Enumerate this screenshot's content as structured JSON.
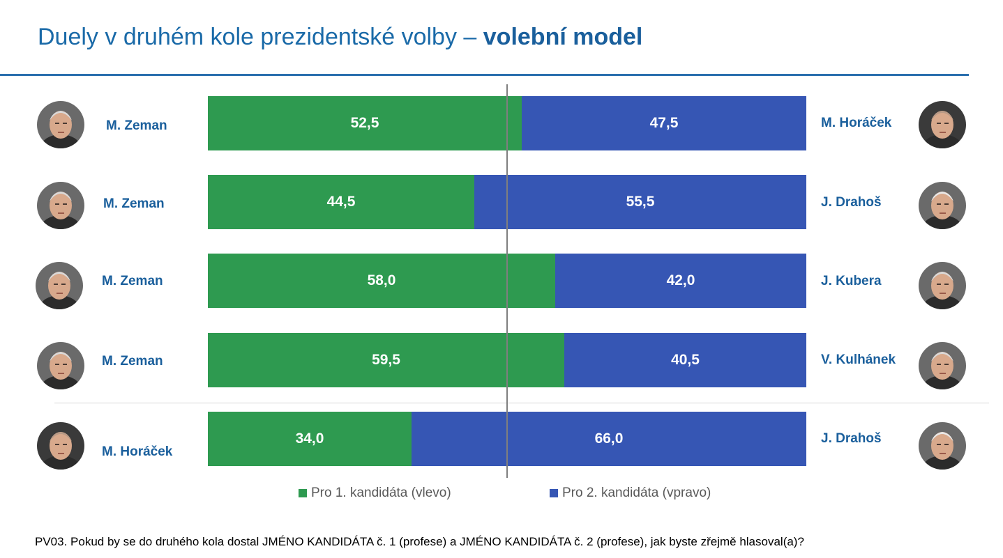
{
  "title": {
    "regular": "Duely v druhém kole prezidentské volby – ",
    "bold": "volební model"
  },
  "colors": {
    "left_series": "#2e9a50",
    "right_series": "#3656b4",
    "title": "#1a6aa8"
  },
  "chart_data": {
    "type": "bar",
    "orientation": "horizontal-stacked-100",
    "categories": [
      "M. Zeman vs M. Horáček",
      "M. Zeman vs J. Drahoš",
      "M. Zeman vs J. Kubera",
      "M. Zeman vs V. Kulhánek",
      "M. Horáček vs J. Drahoš"
    ],
    "duels": [
      {
        "left": "M. Zeman",
        "right": "M. Horáček",
        "left_value": 52.5,
        "right_value": 47.5,
        "left_label": "52,5",
        "right_label": "47,5"
      },
      {
        "left": "M. Zeman",
        "right": "J. Drahoš",
        "left_value": 44.5,
        "right_value": 55.5,
        "left_label": "44,5",
        "right_label": "55,5"
      },
      {
        "left": "M. Zeman",
        "right": "J. Kubera",
        "left_value": 58.0,
        "right_value": 42.0,
        "left_label": "58,0",
        "right_label": "42,0"
      },
      {
        "left": "M. Zeman",
        "right": "V. Kulhánek",
        "left_value": 59.5,
        "right_value": 40.5,
        "left_label": "59,5",
        "right_label": "40,5"
      },
      {
        "left": "M. Horáček",
        "right": "J. Drahoš",
        "left_value": 34.0,
        "right_value": 66.0,
        "left_label": "34,0",
        "right_label": "66,0"
      }
    ],
    "series": [
      {
        "name": "Pro 1. kandidáta (vlevo)"
      },
      {
        "name": "Pro 2. kandidáta (vpravo)"
      }
    ],
    "xlim": [
      0,
      100
    ],
    "reference_line": 50,
    "legend_position": "bottom",
    "grid": false
  },
  "legend": {
    "left": "Pro 1. kandidáta (vlevo)",
    "right": "Pro 2. kandidáta (vpravo)"
  },
  "footnote": "PV03. Pokud by se do druhého kola dostal JMÉNO KANDIDÁTA č. 1 (profese) a JMÉNO KANDIDÁTA č. 2 (profese), jak byste zřejmě hlasoval(a)?"
}
